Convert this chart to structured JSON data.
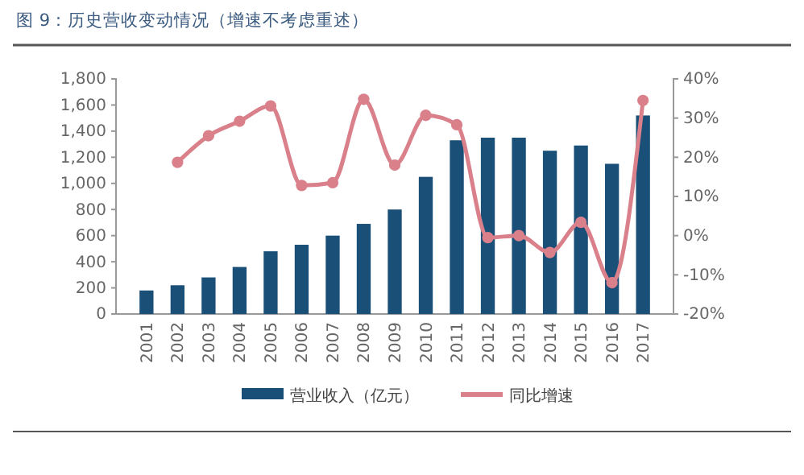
{
  "chart_data": {
    "type": "bar",
    "title": "图 9：历史营收变动情况（增速不考虑重述）",
    "categories": [
      "2001",
      "2002",
      "2003",
      "2004",
      "2005",
      "2006",
      "2007",
      "2008",
      "2009",
      "2010",
      "2011",
      "2012",
      "2013",
      "2014",
      "2015",
      "2016",
      "2017"
    ],
    "series": [
      {
        "name": "营业收入（亿元）",
        "color": "#1a4f78",
        "values": [
          180,
          220,
          280,
          360,
          480,
          530,
          600,
          690,
          800,
          1050,
          1330,
          1350,
          1350,
          1250,
          1290,
          1150,
          1520
        ]
      },
      {
        "name": "同比增速",
        "type": "line",
        "axis": "y2",
        "color": "#d9808a",
        "marker": "circle",
        "values": [
          null,
          18.7,
          25.5,
          29.2,
          33.1,
          12.8,
          13.5,
          34.8,
          18,
          30.7,
          28.3,
          -0.5,
          0,
          -4.3,
          3.4,
          -12,
          34.5
        ]
      }
    ],
    "ylim": [
      0,
      1800
    ],
    "yticks": [
      0,
      200,
      400,
      600,
      800,
      {
        "value": 1000,
        "label": "1,000"
      },
      {
        "value": 1200,
        "label": "1,200"
      },
      {
        "value": 1400,
        "label": "1,400"
      },
      {
        "value": 1600,
        "label": "1,600"
      },
      {
        "value": 1800,
        "label": "1,800"
      }
    ],
    "y2lim": [
      -20,
      40
    ],
    "y2ticks": [
      {
        "value": -20,
        "label": "-20%"
      },
      {
        "value": -10,
        "label": "-10%"
      },
      {
        "value": 0,
        "label": "0%"
      },
      {
        "value": 10,
        "label": "10%"
      },
      {
        "value": 20,
        "label": "20%"
      },
      {
        "value": 30,
        "label": "30%"
      },
      {
        "value": 40,
        "label": "40%"
      }
    ],
    "legend": "bottom",
    "grid": false
  }
}
